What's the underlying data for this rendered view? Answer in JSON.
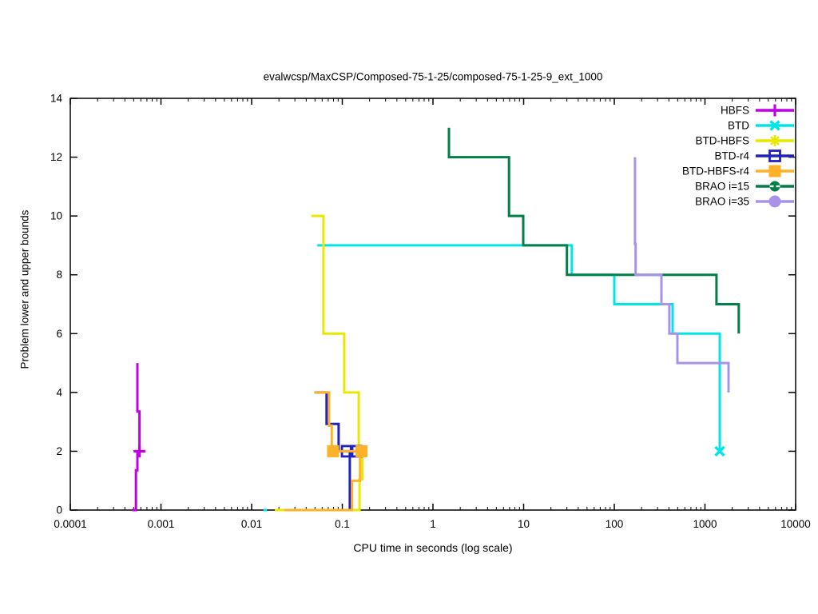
{
  "title": "evalwcsp/MaxCSP/Composed-75-1-25/composed-75-1-25-9_ext_1000",
  "axes": {
    "x_label": "CPU time in seconds (log scale)",
    "y_label": "Problem lower and upper bounds"
  },
  "chart_data": {
    "type": "line",
    "x_scale": "log",
    "xlim": [
      0.0001,
      10000
    ],
    "ylim": [
      0,
      14
    ],
    "x_ticks": [
      0.0001,
      0.001,
      0.01,
      0.1,
      1,
      10,
      100,
      1000,
      10000
    ],
    "x_tick_labels": [
      "0.0001",
      "0.001",
      "0.01",
      "0.1",
      "1",
      "10",
      "100",
      "1000",
      "10000"
    ],
    "y_ticks": [
      0,
      2,
      4,
      6,
      8,
      10,
      12,
      14
    ],
    "y_tick_labels": [
      "0",
      "2",
      "4",
      "6",
      "8",
      "10",
      "12",
      "14"
    ],
    "grid": false,
    "legend_position": "top-right",
    "series": [
      {
        "name": "HBFS",
        "color": "#c000e6",
        "marker": "plus",
        "segments": [
          [
            [
              0.00048,
              0
            ],
            [
              0.00053,
              0
            ],
            [
              0.00053,
              1.35
            ],
            [
              0.00055,
              1.35
            ],
            [
              0.00055,
              2
            ]
          ],
          [
            [
              0.00055,
              5
            ],
            [
              0.00055,
              3.35
            ],
            [
              0.00058,
              3.35
            ],
            [
              0.00058,
              2
            ]
          ]
        ],
        "markers": [
          [
            0.00058,
            2
          ]
        ]
      },
      {
        "name": "BTD",
        "color": "#00e5e5",
        "marker": "cross",
        "segments": [
          [
            [
              0.0135,
              0
            ],
            [
              0.0148,
              0
            ]
          ],
          [
            [
              0.053,
              9
            ],
            [
              34,
              9
            ],
            [
              34,
              8
            ],
            [
              100,
              8
            ],
            [
              100,
              7
            ],
            [
              440,
              7
            ],
            [
              440,
              6
            ],
            [
              1455,
              6
            ],
            [
              1455,
              2
            ]
          ]
        ],
        "markers": [
          [
            1455,
            2
          ]
        ]
      },
      {
        "name": "BTD-HBFS",
        "color": "#e9e900",
        "marker": "star",
        "segments": [
          [
            [
              0.018,
              0
            ],
            [
              0.155,
              0
            ],
            [
              0.155,
              1.05
            ],
            [
              0.166,
              1.05
            ],
            [
              0.166,
              2
            ]
          ],
          [
            [
              0.0455,
              10
            ],
            [
              0.062,
              10
            ],
            [
              0.062,
              6
            ],
            [
              0.105,
              6
            ],
            [
              0.105,
              4
            ],
            [
              0.152,
              4
            ],
            [
              0.152,
              2
            ]
          ]
        ],
        "markers": [
          [
            0.16,
            2
          ]
        ]
      },
      {
        "name": "BTD-r4",
        "color": "#2222bf",
        "marker": "square-open",
        "segments": [
          [
            [
              0.03,
              0
            ],
            [
              0.121,
              0
            ],
            [
              0.121,
              2
            ]
          ],
          [
            [
              0.05,
              4
            ],
            [
              0.067,
              4
            ],
            [
              0.067,
              2.93
            ],
            [
              0.091,
              2.93
            ],
            [
              0.091,
              2
            ],
            [
              0.142,
              2
            ]
          ]
        ],
        "markers": [
          [
            0.113,
            2
          ],
          [
            0.142,
            2
          ]
        ]
      },
      {
        "name": "BTD-HBFS-r4",
        "color": "#ffb127",
        "marker": "square-filled",
        "segments": [
          [
            [
              0.023,
              0
            ],
            [
              0.128,
              0
            ],
            [
              0.128,
              1
            ],
            [
              0.157,
              1
            ],
            [
              0.157,
              2
            ]
          ],
          [
            [
              0.049,
              4
            ],
            [
              0.0715,
              4
            ],
            [
              0.0715,
              2.87
            ],
            [
              0.0765,
              2.87
            ],
            [
              0.0765,
              2
            ],
            [
              0.163,
              2
            ]
          ]
        ],
        "markers": [
          [
            0.079,
            2
          ],
          [
            0.163,
            2
          ]
        ]
      },
      {
        "name": "BRAO i=15",
        "color": "#007f46",
        "marker": "circle-plus",
        "segments": [
          [
            [
              1.5,
              13
            ],
            [
              1.5,
              12
            ],
            [
              6.9,
              12
            ],
            [
              6.9,
              10
            ],
            [
              9.9,
              10
            ],
            [
              9.9,
              9
            ],
            [
              30,
              9
            ],
            [
              30,
              8
            ],
            [
              1340,
              8
            ],
            [
              1340,
              7
            ],
            [
              2360,
              7
            ],
            [
              2360,
              6
            ]
          ]
        ],
        "markers": []
      },
      {
        "name": "BRAO i=35",
        "color": "#a993e8",
        "marker": "circle-filled",
        "segments": [
          [
            [
              169,
              12
            ],
            [
              169,
              9.05
            ],
            [
              172,
              9.05
            ],
            [
              172,
              8
            ],
            [
              331,
              8
            ],
            [
              331,
              7
            ],
            [
              405,
              7
            ],
            [
              405,
              6
            ],
            [
              497,
              6
            ],
            [
              497,
              5
            ],
            [
              1820,
              5
            ],
            [
              1820,
              4
            ]
          ]
        ],
        "markers": []
      }
    ]
  }
}
